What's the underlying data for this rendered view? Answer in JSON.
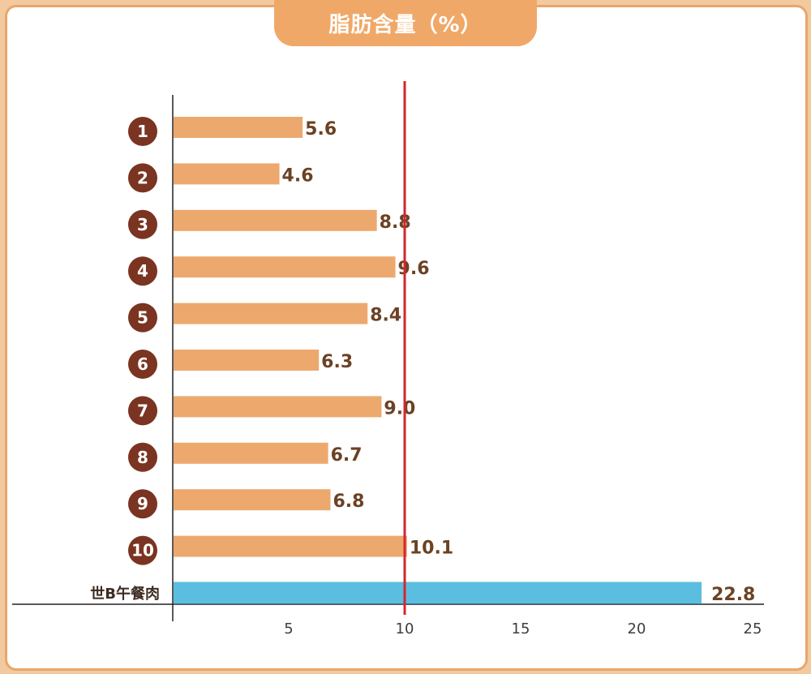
{
  "chart_data": {
    "type": "bar",
    "orientation": "horizontal",
    "title": "脂肪含量（%）",
    "categories": [
      "1",
      "2",
      "3",
      "4",
      "5",
      "6",
      "7",
      "8",
      "9",
      "10",
      "世B午餐肉"
    ],
    "values": [
      5.6,
      4.6,
      8.8,
      9.6,
      8.4,
      6.3,
      9.0,
      6.7,
      6.8,
      10.1,
      22.8
    ],
    "value_labels": [
      "5.6",
      "4.6",
      "8.8",
      "9.6",
      "8.4",
      "6.3",
      "9.0",
      "6.7",
      "6.8",
      "10.1",
      "22.8"
    ],
    "highlight_index": 10,
    "xlim": [
      0,
      25
    ],
    "xticks": [
      5,
      10,
      15,
      20,
      25
    ],
    "reference_line": 10,
    "grid": false,
    "colors": {
      "bar": "#eda86e",
      "highlight_bar": "#5bbde0",
      "reference_line": "#d4262e",
      "rank_badge": "#7a3421",
      "value_text": "#6b4224",
      "frame_border": "#e9a66a",
      "title_tab": "#f0a868"
    }
  }
}
